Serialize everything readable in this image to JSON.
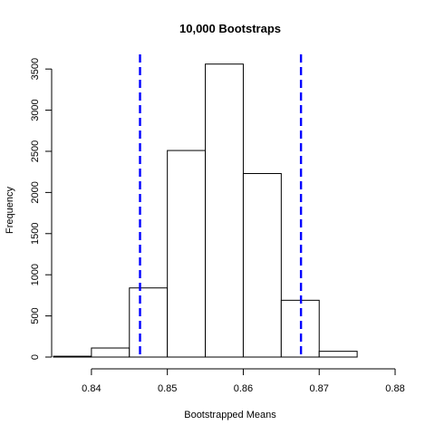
{
  "chart_data": {
    "type": "bar",
    "title": "10,000 Bootstraps",
    "xlabel": "Bootstrapped Means",
    "ylabel": "Frequency",
    "bins": [
      {
        "start": 0.835,
        "end": 0.84,
        "count": 10
      },
      {
        "start": 0.84,
        "end": 0.845,
        "count": 110
      },
      {
        "start": 0.845,
        "end": 0.85,
        "count": 840
      },
      {
        "start": 0.85,
        "end": 0.855,
        "count": 2510
      },
      {
        "start": 0.855,
        "end": 0.86,
        "count": 3560
      },
      {
        "start": 0.86,
        "end": 0.865,
        "count": 2230
      },
      {
        "start": 0.865,
        "end": 0.87,
        "count": 690
      },
      {
        "start": 0.87,
        "end": 0.875,
        "count": 70
      },
      {
        "start": 0.875,
        "end": 0.88,
        "count": 0
      }
    ],
    "xlim": [
      0.835,
      0.88
    ],
    "ylim": [
      0,
      3700
    ],
    "xticks": [
      0.84,
      0.85,
      0.86,
      0.87,
      0.88
    ],
    "xtick_labels": [
      "0.84",
      "0.85",
      "0.86",
      "0.87",
      "0.88"
    ],
    "yticks": [
      0,
      500,
      1000,
      1500,
      2000,
      2500,
      3000,
      3500
    ],
    "ytick_labels": [
      "0",
      "500",
      "1000",
      "1500",
      "2000",
      "2500",
      "3000",
      "3500"
    ],
    "vlines": [
      0.8464,
      0.8676
    ],
    "vline_color": "#0000ff",
    "bar_fill": "#ffffff",
    "bar_stroke": "#000000",
    "grid": false,
    "legend": "none"
  }
}
